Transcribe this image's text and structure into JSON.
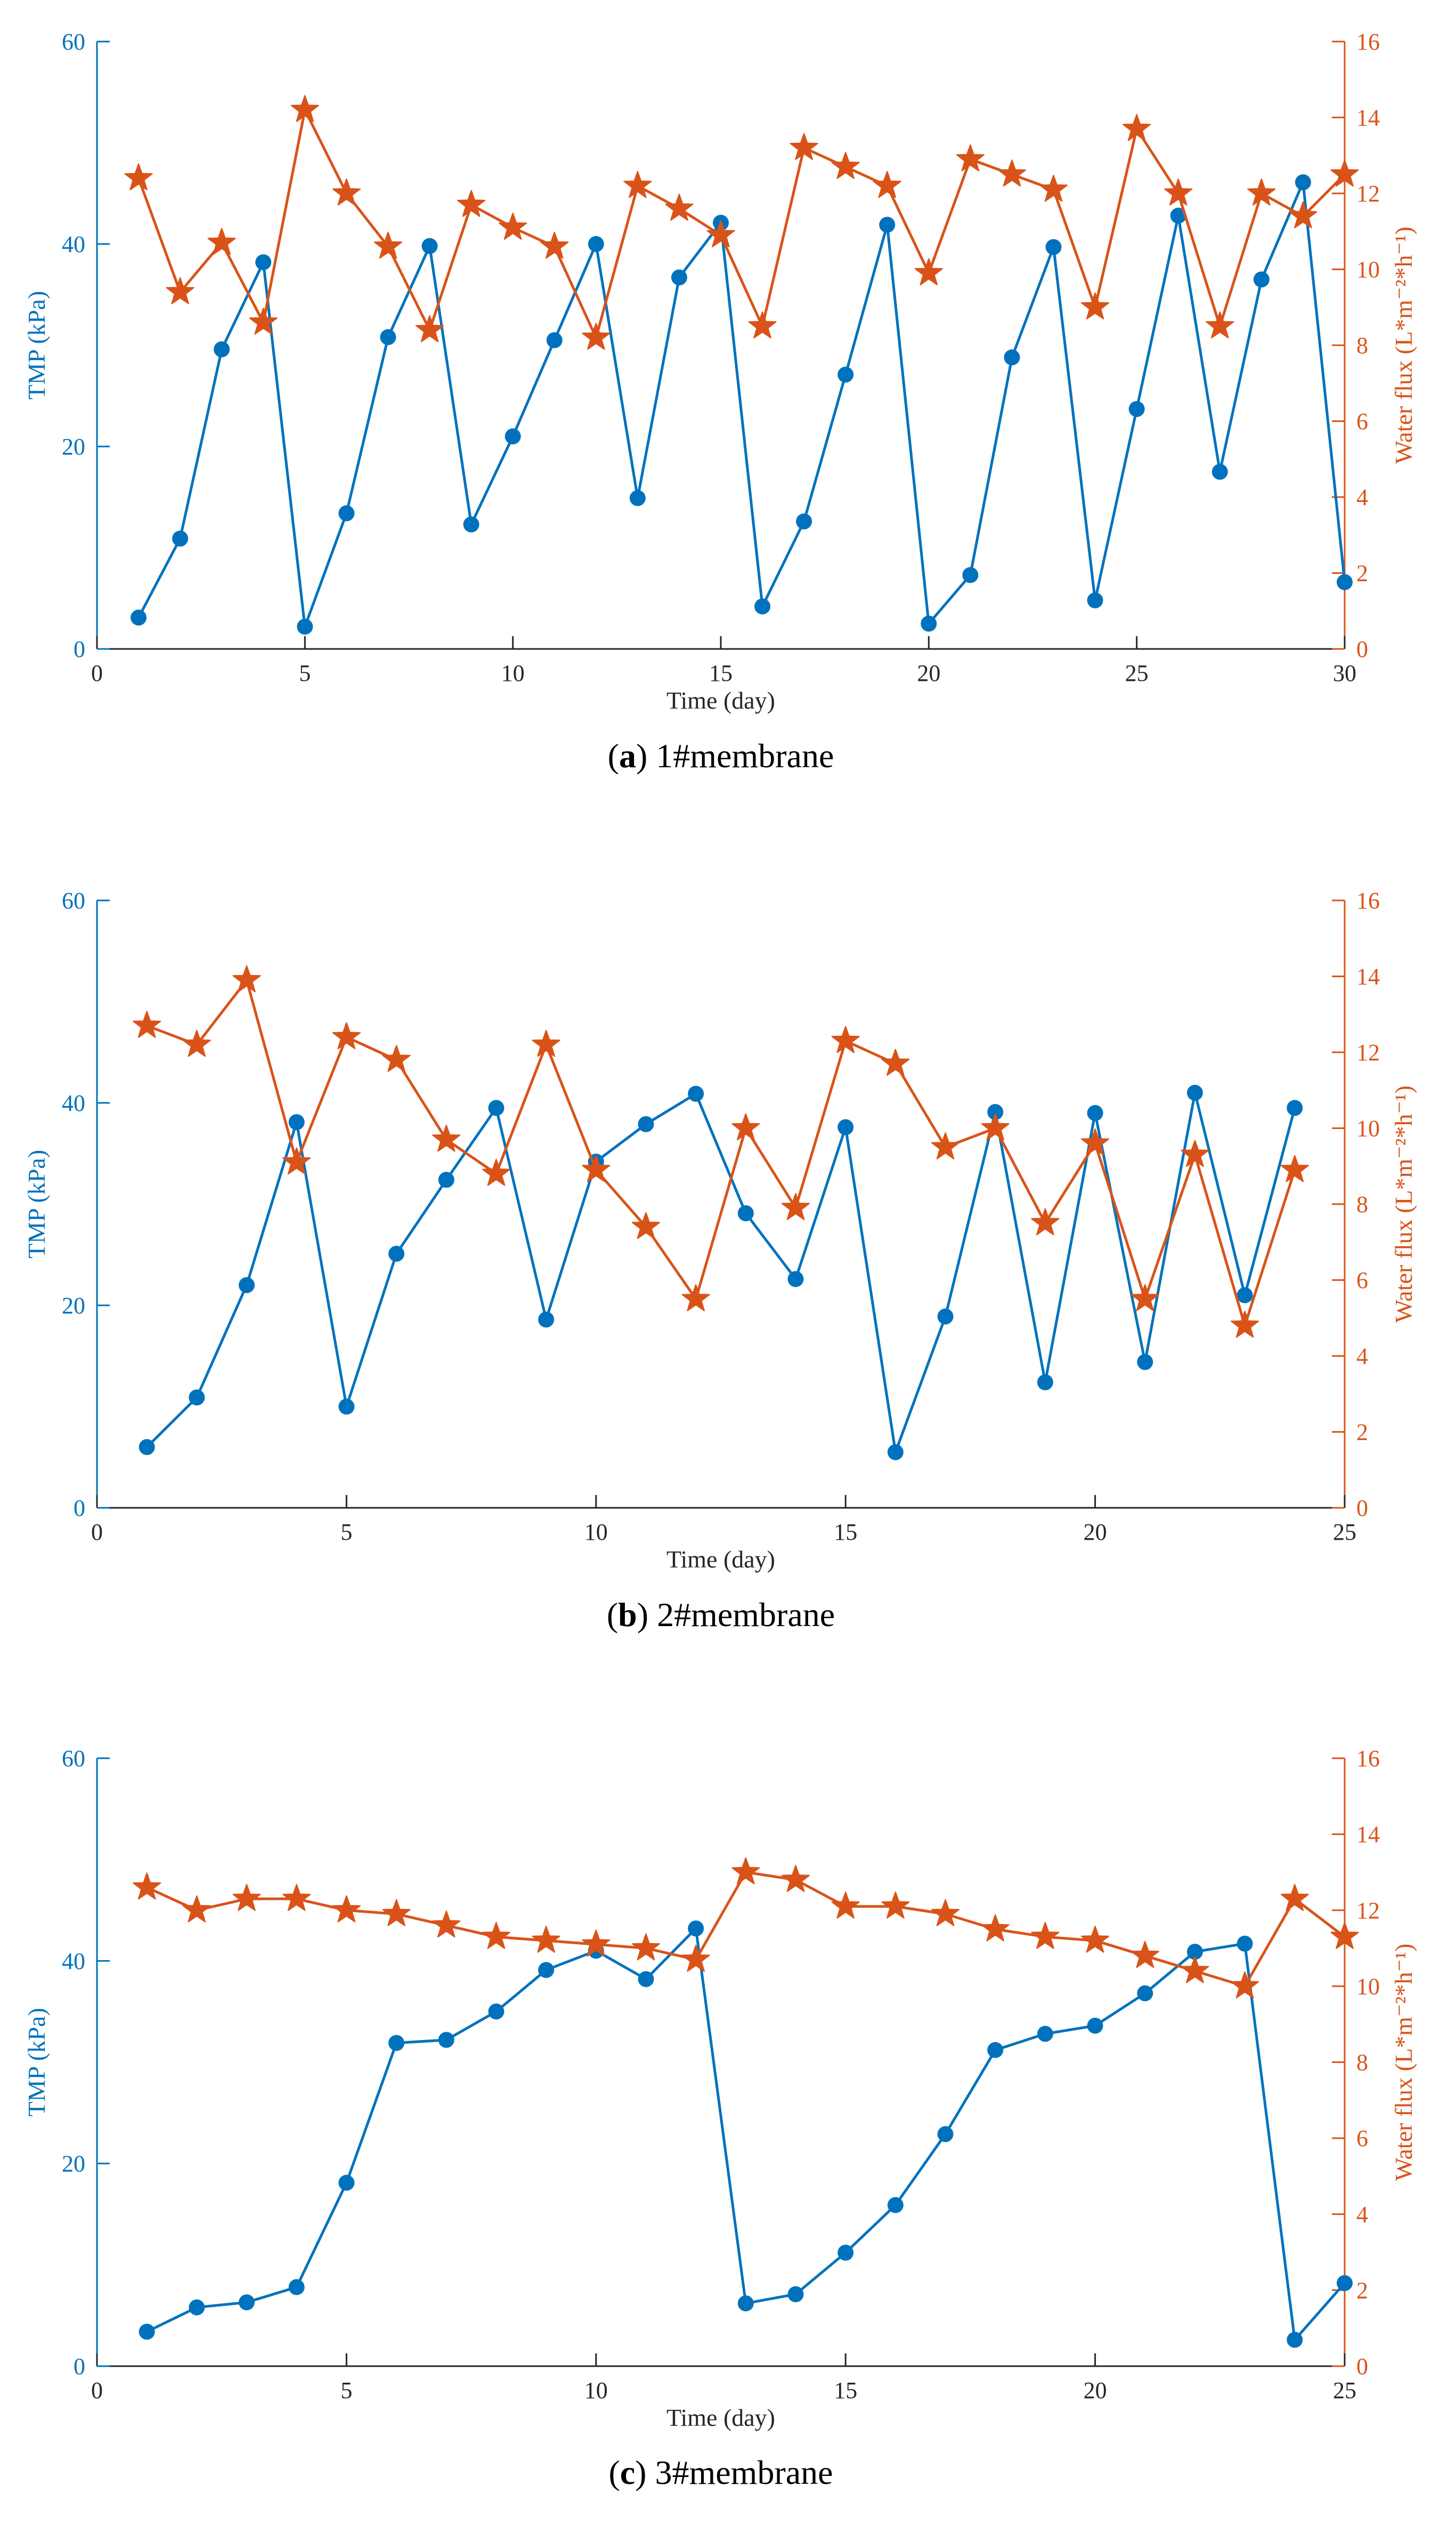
{
  "colors": {
    "tmp": "#0072BD",
    "flux": "#D95319",
    "axis": "#262626"
  },
  "chart_data": [
    {
      "type": "line",
      "caption_letter": "a",
      "caption_text": " 1#membrane",
      "xlabel": "Time (day)",
      "ylabel_left": "TMP (kPa)",
      "ylabel_right": "Water flux (L*m⁻²*h⁻¹)",
      "xlim": [
        0,
        30
      ],
      "xticks": [
        0,
        5,
        10,
        15,
        20,
        25,
        30
      ],
      "ylim_left": [
        0,
        60
      ],
      "yticks_left": [
        0,
        20,
        40,
        60
      ],
      "ylim_right": [
        0,
        16
      ],
      "yticks_right": [
        0,
        2,
        4,
        6,
        8,
        10,
        12,
        14,
        16
      ],
      "series": [
        {
          "name": "TMP",
          "axis": "left",
          "marker": "circle",
          "x": [
            1,
            2,
            3,
            4,
            5,
            6,
            7,
            8,
            9,
            10,
            11,
            12,
            13,
            14,
            15,
            16,
            17,
            18,
            19,
            20,
            21,
            22,
            23,
            24,
            25,
            26,
            27,
            28,
            29,
            30
          ],
          "values": [
            3.1,
            10.9,
            29.6,
            38.2,
            2.2,
            13.4,
            30.8,
            39.8,
            12.3,
            21.0,
            30.5,
            40.0,
            14.9,
            36.7,
            42.1,
            4.2,
            12.6,
            27.1,
            41.9,
            2.5,
            7.3,
            28.8,
            39.7,
            4.8,
            23.7,
            42.8,
            17.5,
            36.5,
            46.1,
            6.6
          ]
        },
        {
          "name": "Water flux",
          "axis": "right",
          "marker": "star",
          "x": [
            1,
            2,
            3,
            4,
            5,
            6,
            7,
            8,
            9,
            10,
            11,
            12,
            13,
            14,
            15,
            16,
            17,
            18,
            19,
            20,
            21,
            22,
            23,
            24,
            25,
            26,
            27,
            28,
            29,
            30
          ],
          "values": [
            12.4,
            9.4,
            10.7,
            8.6,
            14.2,
            12.0,
            10.6,
            8.4,
            11.7,
            11.1,
            10.6,
            8.2,
            12.2,
            11.6,
            10.9,
            8.5,
            13.2,
            12.7,
            12.2,
            9.9,
            12.9,
            12.5,
            12.1,
            9.0,
            13.7,
            12.0,
            8.5,
            12.0,
            11.4,
            12.5
          ]
        }
      ]
    },
    {
      "type": "line",
      "caption_letter": "b",
      "caption_text": " 2#membrane",
      "xlabel": "Time (day)",
      "ylabel_left": "TMP (kPa)",
      "ylabel_right": "Water flux (L*m⁻²*h⁻¹)",
      "xlim": [
        0,
        25
      ],
      "xticks": [
        0,
        5,
        10,
        15,
        20,
        25
      ],
      "ylim_left": [
        0,
        60
      ],
      "yticks_left": [
        0,
        20,
        40,
        60
      ],
      "ylim_right": [
        0,
        16
      ],
      "yticks_right": [
        0,
        2,
        4,
        6,
        8,
        10,
        12,
        14,
        16
      ],
      "series": [
        {
          "name": "TMP",
          "axis": "left",
          "marker": "circle",
          "x": [
            1,
            2,
            3,
            4,
            5,
            6,
            7,
            8,
            9,
            10,
            11,
            12,
            13,
            14,
            15,
            16,
            17,
            18,
            19,
            20,
            21,
            22,
            23,
            24
          ],
          "values": [
            6.0,
            10.9,
            22.0,
            38.1,
            10.0,
            25.1,
            32.4,
            39.5,
            18.6,
            34.2,
            37.9,
            40.9,
            29.1,
            22.6,
            37.6,
            5.5,
            18.9,
            39.1,
            12.4,
            39.0,
            14.4,
            41.0,
            21.0,
            39.5
          ]
        },
        {
          "name": "Water flux",
          "axis": "right",
          "marker": "star",
          "x": [
            1,
            2,
            3,
            4,
            5,
            6,
            7,
            8,
            9,
            10,
            11,
            12,
            13,
            14,
            15,
            16,
            17,
            18,
            19,
            20,
            21,
            22,
            23,
            24
          ],
          "values": [
            12.7,
            12.2,
            13.9,
            9.1,
            12.4,
            11.8,
            9.7,
            8.8,
            12.2,
            8.9,
            7.4,
            5.5,
            10.0,
            7.9,
            12.3,
            11.7,
            9.5,
            10.0,
            7.5,
            9.6,
            5.5,
            9.3,
            4.8,
            8.9
          ]
        }
      ]
    },
    {
      "type": "line",
      "caption_letter": "c",
      "caption_text": " 3#membrane",
      "xlabel": "Time (day)",
      "ylabel_left": "TMP (kPa)",
      "ylabel_right": "Water flux (L*m⁻²*h⁻¹)",
      "xlim": [
        0,
        25
      ],
      "xticks": [
        0,
        5,
        10,
        15,
        20,
        25
      ],
      "ylim_left": [
        0,
        60
      ],
      "yticks_left": [
        0,
        20,
        40,
        60
      ],
      "ylim_right": [
        0,
        16
      ],
      "yticks_right": [
        0,
        2,
        4,
        6,
        8,
        10,
        12,
        14,
        16
      ],
      "series": [
        {
          "name": "TMP",
          "axis": "left",
          "marker": "circle",
          "x": [
            1,
            2,
            3,
            4,
            5,
            6,
            7,
            8,
            9,
            10,
            11,
            12,
            13,
            14,
            15,
            16,
            17,
            18,
            19,
            20,
            21,
            22,
            23,
            24,
            25
          ],
          "values": [
            3.4,
            5.8,
            6.3,
            7.8,
            18.1,
            31.9,
            32.2,
            35.0,
            39.1,
            41.0,
            38.2,
            43.2,
            6.2,
            7.1,
            11.2,
            15.9,
            22.9,
            31.2,
            32.8,
            33.6,
            36.8,
            40.9,
            41.7,
            2.6,
            8.2
          ]
        },
        {
          "name": "Water flux",
          "axis": "right",
          "marker": "star",
          "x": [
            1,
            2,
            3,
            4,
            5,
            6,
            7,
            8,
            9,
            10,
            11,
            12,
            13,
            14,
            15,
            16,
            17,
            18,
            19,
            20,
            21,
            22,
            23,
            24,
            25
          ],
          "values": [
            12.6,
            12.0,
            12.3,
            12.3,
            12.0,
            11.9,
            11.6,
            11.3,
            11.2,
            11.1,
            11.0,
            10.7,
            13.0,
            12.8,
            12.1,
            12.1,
            11.9,
            11.5,
            11.3,
            11.2,
            10.8,
            10.4,
            10.0,
            12.3,
            11.3
          ]
        }
      ]
    }
  ]
}
